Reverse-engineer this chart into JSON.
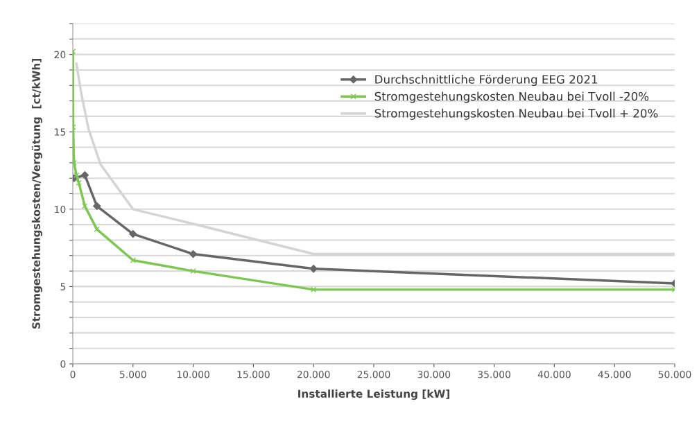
{
  "chart_data": {
    "type": "line",
    "xlabel": "Installierte Leistung [kW]",
    "ylabel": "Stromgestehungskosten/Vergütung  [ct/kWh]",
    "xlim": [
      0,
      50000
    ],
    "ylim": [
      0,
      22
    ],
    "xticks": [
      0,
      {
        "value": 5000,
        "label": "5.000"
      },
      {
        "value": 10000,
        "label": "10.000"
      },
      {
        "value": 15000,
        "label": "15.000"
      },
      {
        "value": 20000,
        "label": "20.000"
      },
      {
        "value": 25000,
        "label": "25.000"
      },
      {
        "value": 30000,
        "label": "30.000"
      },
      {
        "value": 35000,
        "label": "35.000"
      },
      {
        "value": 40000,
        "label": "40.000"
      },
      {
        "value": 45000,
        "label": "45.000"
      },
      {
        "value": 50000,
        "label": "50.000"
      }
    ],
    "yticks": [
      0,
      {
        "value": 1,
        "label": null
      },
      {
        "value": 2,
        "label": null
      },
      {
        "value": 3,
        "label": null
      },
      {
        "value": 4,
        "label": null
      },
      5,
      {
        "value": 6,
        "label": null
      },
      {
        "value": 7,
        "label": null
      },
      {
        "value": 8,
        "label": null
      },
      {
        "value": 9,
        "label": null
      },
      10,
      {
        "value": 11,
        "label": null
      },
      {
        "value": 12,
        "label": null
      },
      {
        "value": 13,
        "label": null
      },
      {
        "value": 14,
        "label": null
      },
      15,
      {
        "value": 16,
        "label": null
      },
      {
        "value": 17,
        "label": null
      },
      {
        "value": 18,
        "label": null
      },
      {
        "value": 19,
        "label": null
      },
      20,
      {
        "value": 21,
        "label": null
      },
      {
        "value": 22,
        "label": null
      }
    ],
    "grid": "y",
    "legend": "top right",
    "line_style": "solid",
    "series": [
      {
        "name": "Durchschnittliche Förderung EEG 2021",
        "color": "#666666",
        "marker": "diamond",
        "x": [
          100,
          1000,
          2000,
          5000,
          10000,
          20000,
          50000
        ],
        "values": [
          12.0,
          12.2,
          10.2,
          8.4,
          7.1,
          6.15,
          5.2
        ]
      },
      {
        "name": "Stromgestehungskosten Neubau bei Tvoll -20%",
        "color": "#7dc750",
        "marker": "cross",
        "x": [
          10,
          30,
          100,
          300,
          500,
          1000,
          2000,
          5000,
          10000,
          20000,
          50000
        ],
        "values": [
          20.2,
          15.3,
          13.0,
          12.2,
          11.7,
          10.2,
          8.7,
          6.7,
          6.0,
          4.8,
          4.8
        ]
      },
      {
        "name": "Stromgestehungskosten Neubau bei Tvoll + 20%",
        "color": "#d4d4d4",
        "marker": "none",
        "x": [
          300,
          700,
          1300,
          2300,
          5000,
          10000,
          20000,
          50000
        ],
        "values": [
          19.4,
          17.5,
          15.2,
          12.9,
          10.0,
          9.05,
          7.1,
          7.1
        ]
      }
    ]
  }
}
